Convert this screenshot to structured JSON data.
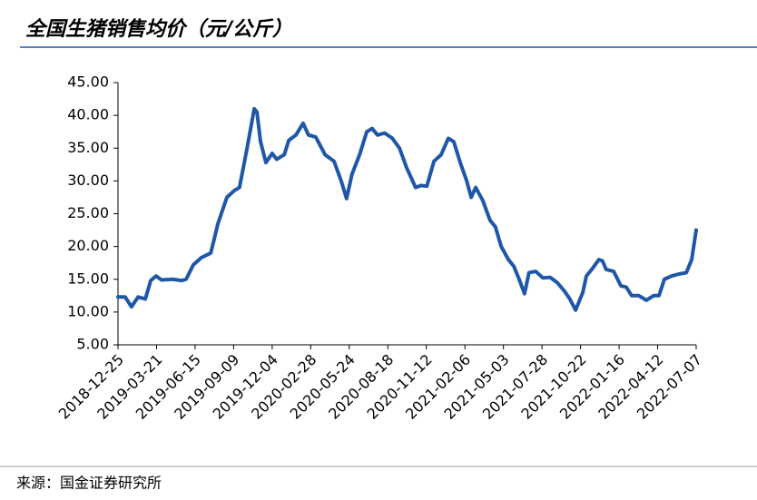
{
  "chart_data": {
    "type": "line",
    "title": "全国生猪销售均价（元/公斤）",
    "source": "来源：国金证券研究所",
    "x": [
      "2018-12-25",
      "2019-01-10",
      "2019-01-24",
      "2019-02-08",
      "2019-02-24",
      "2019-03-08",
      "2019-03-20",
      "2019-04-01",
      "2019-04-26",
      "2019-05-16",
      "2019-05-26",
      "2019-06-11",
      "2019-06-29",
      "2019-07-20",
      "2019-08-05",
      "2019-08-25",
      "2019-09-10",
      "2019-09-22",
      "2019-10-09",
      "2019-10-25",
      "2019-10-31",
      "2019-11-08",
      "2019-11-20",
      "2019-12-04",
      "2019-12-14",
      "2019-12-31",
      "2020-01-10",
      "2020-01-26",
      "2020-02-11",
      "2020-02-23",
      "2020-03-10",
      "2020-03-31",
      "2020-04-20",
      "2020-05-06",
      "2020-05-18",
      "2020-05-30",
      "2020-06-16",
      "2020-07-02",
      "2020-07-14",
      "2020-07-26",
      "2020-08-11",
      "2020-08-28",
      "2020-09-13",
      "2020-09-29",
      "2020-10-19",
      "2020-10-31",
      "2020-11-13",
      "2020-11-29",
      "2020-12-15",
      "2020-12-31",
      "2021-01-12",
      "2021-01-28",
      "2021-02-10",
      "2021-02-20",
      "2021-03-02",
      "2021-03-18",
      "2021-04-03",
      "2021-04-15",
      "2021-04-28",
      "2021-05-14",
      "2021-05-26",
      "2021-06-07",
      "2021-06-19",
      "2021-06-29",
      "2021-07-14",
      "2021-07-30",
      "2021-08-15",
      "2021-08-31",
      "2021-09-16",
      "2021-09-28",
      "2021-10-11",
      "2021-10-27",
      "2021-11-04",
      "2021-11-16",
      "2021-12-02",
      "2021-12-10",
      "2021-12-18",
      "2022-01-04",
      "2022-01-20",
      "2022-02-01",
      "2022-02-13",
      "2022-03-01",
      "2022-03-18",
      "2022-04-03",
      "2022-04-15",
      "2022-04-27",
      "2022-05-13",
      "2022-05-30",
      "2022-06-15",
      "2022-06-27",
      "2022-07-07"
    ],
    "series": [
      {
        "color": "#1f57a8",
        "values": [
          12.3,
          12.3,
          10.8,
          12.3,
          12.0,
          14.8,
          15.5,
          14.9,
          15.0,
          14.8,
          15.0,
          17.2,
          18.3,
          19.0,
          23.5,
          27.5,
          28.5,
          29.0,
          35.0,
          41.0,
          40.5,
          36.0,
          32.8,
          34.2,
          33.3,
          34.0,
          36.2,
          37.0,
          38.8,
          37.0,
          36.7,
          34.0,
          33.0,
          30.0,
          27.3,
          31.0,
          34.0,
          37.5,
          38.0,
          37.0,
          37.3,
          36.5,
          35.0,
          32.0,
          29.0,
          29.3,
          29.2,
          33.0,
          34.0,
          36.5,
          36.0,
          32.5,
          30.0,
          27.5,
          29.0,
          27.0,
          24.0,
          23.0,
          20.0,
          18.0,
          17.0,
          15.0,
          12.8,
          16.0,
          16.2,
          15.2,
          15.3,
          14.5,
          13.2,
          12.0,
          10.3,
          13.0,
          15.5,
          16.5,
          18.0,
          17.8,
          16.5,
          16.2,
          14.0,
          13.8,
          12.5,
          12.5,
          11.8,
          12.5,
          12.5,
          15.0,
          15.5,
          15.8,
          16.0,
          18.0,
          22.5
        ]
      }
    ],
    "xlim": [
      "2018-12-25",
      "2022-07-07"
    ],
    "xticks": [
      "2018-12-25",
      "2019-03-21",
      "2019-06-15",
      "2019-09-09",
      "2019-12-04",
      "2020-02-28",
      "2020-05-24",
      "2020-08-18",
      "2020-11-12",
      "2021-02-06",
      "2021-05-03",
      "2021-07-28",
      "2021-10-22",
      "2022-01-16",
      "2022-04-12",
      "2022-07-07"
    ],
    "ylim": [
      5,
      45
    ],
    "yticks": [
      {
        "value": 5,
        "label": "5.00"
      },
      {
        "value": 10,
        "label": "10.00"
      },
      {
        "value": 15,
        "label": "15.00"
      },
      {
        "value": 20,
        "label": "20.00"
      },
      {
        "value": 25,
        "label": "25.00"
      },
      {
        "value": 30,
        "label": "30.00"
      },
      {
        "value": 35,
        "label": "35.00"
      },
      {
        "value": 40,
        "label": "40.00"
      },
      {
        "value": 45,
        "label": "45.00"
      }
    ],
    "grid": false
  }
}
